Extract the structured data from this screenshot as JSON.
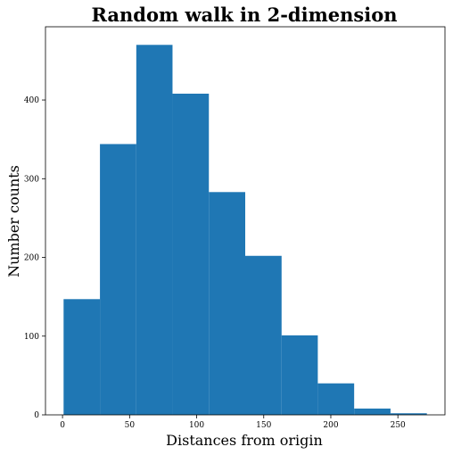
{
  "chart_data": {
    "type": "bar",
    "title": "Random walk in 2-dimension",
    "xlabel": "Distances from origin",
    "ylabel": "Number counts",
    "bin_edges": [
      0.8,
      27.9,
      55.0,
      82.0,
      109.1,
      136.2,
      163.3,
      190.3,
      217.4,
      244.5,
      271.6
    ],
    "values": [
      147,
      344,
      470,
      408,
      283,
      202,
      101,
      40,
      8,
      2
    ],
    "xlim": [
      -12.7,
      285.1
    ],
    "ylim": [
      0,
      493
    ],
    "xticks": [
      0,
      50,
      100,
      150,
      200,
      250
    ],
    "yticks": [
      0,
      100,
      200,
      300,
      400
    ],
    "grid": false,
    "color": "#1f77b4"
  }
}
